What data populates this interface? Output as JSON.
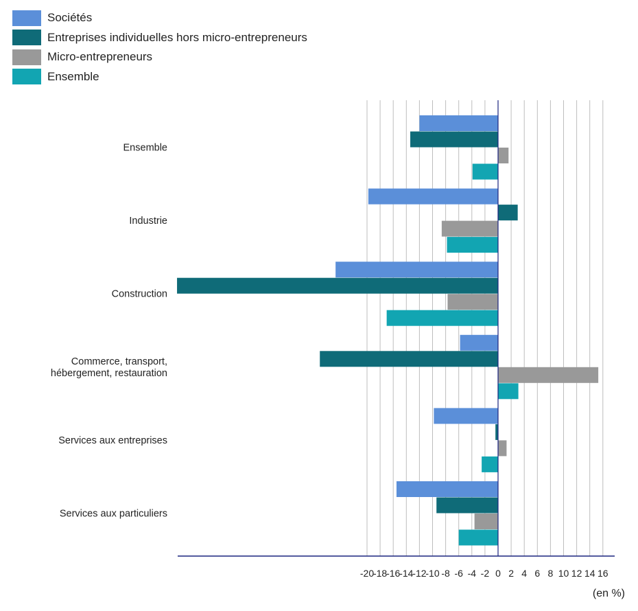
{
  "chart_data": {
    "type": "bar",
    "orientation": "horizontal",
    "unit": "(en %)",
    "xlim": [
      -49,
      17.5
    ],
    "grid": true,
    "legend_position": "top-left",
    "ticks": [
      -20,
      -18,
      -16,
      -14,
      -12,
      -10,
      -8,
      -6,
      -4,
      -2,
      0,
      2,
      4,
      6,
      8,
      10,
      12,
      14,
      16
    ],
    "categories": [
      [
        "Ensemble"
      ],
      [
        "Industrie"
      ],
      [
        "Construction"
      ],
      [
        "Commerce, transport,",
        "hébergement, restauration"
      ],
      [
        "Services aux entreprises"
      ],
      [
        "Services aux particuliers"
      ]
    ],
    "series": [
      {
        "name": "Sociétés",
        "color": "#5b8fd9",
        "values": [
          -12.0,
          -19.8,
          -24.8,
          -5.8,
          -9.8,
          -15.5
        ]
      },
      {
        "name": "Entreprises individuelles hors micro-entrepreneurs",
        "color": "#0f6b78",
        "values": [
          -13.4,
          3.0,
          -49.0,
          -27.2,
          -0.4,
          -9.4
        ]
      },
      {
        "name": "Micro-entrepreneurs",
        "color": "#999999",
        "values": [
          1.6,
          -8.6,
          -7.7,
          15.3,
          1.3,
          -3.6
        ]
      },
      {
        "name": "Ensemble",
        "color": "#12a5b2",
        "values": [
          -3.9,
          -7.8,
          -17.0,
          3.1,
          -2.5,
          -6.0
        ]
      }
    ]
  }
}
